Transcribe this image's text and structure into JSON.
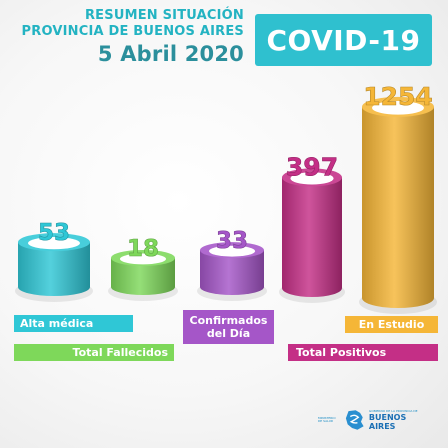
{
  "header": {
    "line1": "RESUMEN SITUACIÓN",
    "line2": "PROVINCIA DE BUENOS AIRES",
    "date": "5 Abril 2020",
    "badge": "COVID-19",
    "badge_color": "#2fc0cf"
  },
  "chart_data": {
    "type": "bar",
    "categories": [
      "Alta médica",
      "Total Fallecidos",
      "Confirmados del Día",
      "Total Positivos",
      "En Estudio"
    ],
    "values": [
      53,
      18,
      33,
      397,
      1254
    ],
    "colors": [
      "#2fc7d6",
      "#7ed85a",
      "#a556c8",
      "#c42f86",
      "#f5b637"
    ]
  },
  "labels": {
    "alta": "Alta médica",
    "fallecidos": "Total Fallecidos",
    "confirmados": "Confirmados del Día",
    "estudio": "En Estudio",
    "positivos": "Total Positivos"
  },
  "footer": {
    "ministry": "MINISTERIO DE SALUD",
    "gov": "GOBIERNO DE LA PROVINCIA DE",
    "brand": "BUENOS AIRES",
    "logo_icon": "province-map-icon"
  }
}
